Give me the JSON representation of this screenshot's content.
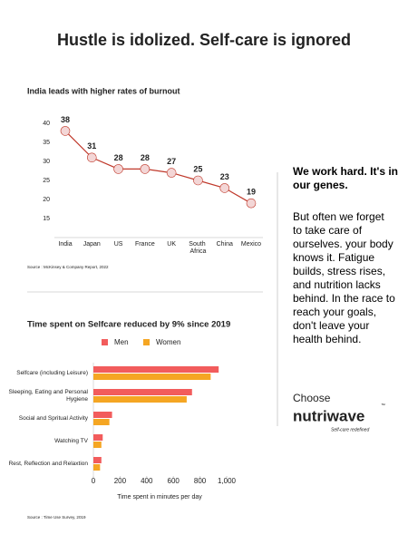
{
  "title": "Hustle is idolized. Self-care is ignored",
  "chart_data": [
    {
      "type": "line",
      "title": "India leads with higher rates of burnout",
      "categories": [
        "India",
        "Japan",
        "US",
        "France",
        "UK",
        "South Africa",
        "China",
        "Mexico"
      ],
      "values": [
        38,
        31,
        28,
        28,
        27,
        25,
        23,
        19
      ],
      "color": "#c0392b",
      "ylim": [
        10,
        40
      ],
      "yticks": [
        15,
        20,
        25,
        30,
        35,
        40
      ],
      "source": "Source : McKinsey & Company Report, 2022"
    },
    {
      "type": "barh",
      "title": "Time spent on Selfcare reduced by 9% since 2019",
      "categories": [
        "Selfcare (including Leisure)",
        "Sleeping, Eating and Personal Hygiene",
        "Social and Spritual Activity",
        "Watching TV",
        "Rest, Reflection and Relaxtion"
      ],
      "series": [
        {
          "name": "Men",
          "color": "#f25c5c",
          "values": [
            940,
            740,
            140,
            70,
            60
          ]
        },
        {
          "name": "Women",
          "color": "#f5a623",
          "values": [
            880,
            700,
            120,
            60,
            50
          ]
        }
      ],
      "xlim": [
        0,
        1000
      ],
      "xticks": [
        0,
        200,
        400,
        600,
        800,
        {
          "value": 1000,
          "label": "1,000"
        }
      ],
      "xlabel": "Time spent in minutes per day",
      "source": "Source : Time Use Survey, 2019"
    }
  ],
  "side": {
    "heading": "We work hard. It's in our genes.",
    "body": "But often we forget to take care of ourselves. your body knows it. Fatigue builds, stress rises, and nutrition lacks behind. In the race to reach your goals, don't leave your health behind.",
    "cta": "Choose",
    "brand": "nutriwave",
    "tm": "™",
    "tagline": "Self-care redefined"
  }
}
